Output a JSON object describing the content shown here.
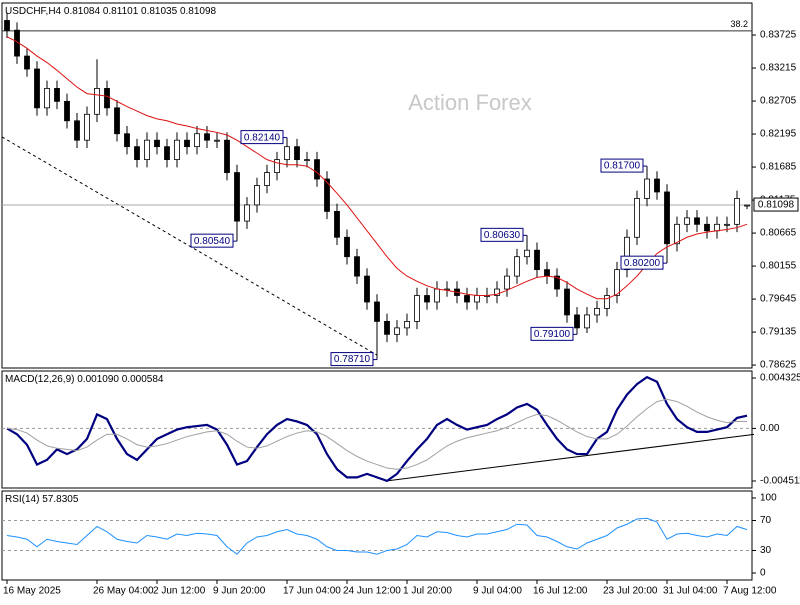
{
  "chart_data": [
    {
      "type": "candlestick",
      "title": "USDCHF,H4",
      "watermark": "Action Forex",
      "xlim": [
        -0.5,
        74.5
      ],
      "xticks": [
        {
          "value": 0,
          "label": "16 May 2025"
        },
        {
          "value": 9,
          "label": "26 May 04:00"
        },
        {
          "value": 15,
          "label": "2 Jun 12:00"
        },
        {
          "value": 21,
          "label": "9 Jun 20:00"
        },
        {
          "value": 28,
          "label": "17 Jun 04:00"
        },
        {
          "value": 34,
          "label": "24 Jun 12:00"
        },
        {
          "value": 40,
          "label": "1 Jul 20:00"
        },
        {
          "value": 47,
          "label": "9 Jul 04:00"
        },
        {
          "value": 53,
          "label": "16 Jul 12:00"
        },
        {
          "value": 60,
          "label": "23 Jul 20:00"
        },
        {
          "value": 66,
          "label": "31 Jul 04:00"
        },
        {
          "value": 72,
          "label": "7 Aug 12:00"
        }
      ],
      "ylim": [
        0.7858,
        0.8422
      ],
      "yticks": [
        0.83725,
        0.83215,
        0.82705,
        0.82195,
        0.81685,
        0.81175,
        0.80665,
        0.80155,
        0.79645,
        0.79135,
        0.78625
      ],
      "color": "#000000",
      "open": [
        0.8395,
        0.838,
        0.834,
        0.832,
        0.826,
        0.829,
        0.827,
        0.824,
        0.821,
        0.825,
        0.829,
        0.826,
        0.822,
        0.82,
        0.818,
        0.821,
        0.82,
        0.818,
        0.821,
        0.82,
        0.822,
        0.821,
        0.821,
        0.816,
        0.8085,
        0.811,
        0.814,
        0.816,
        0.818,
        0.82,
        0.818,
        0.818,
        0.815,
        0.81,
        0.806,
        0.803,
        0.8,
        0.796,
        0.793,
        0.791,
        0.792,
        0.793,
        0.797,
        0.796,
        0.798,
        0.798,
        0.797,
        0.796,
        0.797,
        0.797,
        0.798,
        0.8,
        0.803,
        0.804,
        0.801,
        0.8,
        0.798,
        0.794,
        0.792,
        0.794,
        0.795,
        0.797,
        0.801,
        0.806,
        0.812,
        0.815,
        0.813,
        0.805,
        0.808,
        0.809,
        0.808,
        0.807,
        0.808,
        0.808,
        0.81084
      ],
      "high": [
        0.8407,
        0.8392,
        0.8352,
        0.8332,
        0.8302,
        0.8302,
        0.8282,
        0.8252,
        0.8262,
        0.8335,
        0.8302,
        0.8272,
        0.8232,
        0.8212,
        0.8222,
        0.8222,
        0.8212,
        0.8222,
        0.8222,
        0.8232,
        0.8232,
        0.8222,
        0.8222,
        0.8172,
        0.8122,
        0.8152,
        0.8172,
        0.8192,
        0.8214,
        0.8212,
        0.8192,
        0.8192,
        0.8162,
        0.8112,
        0.8072,
        0.8042,
        0.8012,
        0.7972,
        0.7942,
        0.7932,
        0.7942,
        0.7982,
        0.7982,
        0.7992,
        0.7992,
        0.7992,
        0.7982,
        0.7982,
        0.7982,
        0.7992,
        0.8012,
        0.8042,
        0.8063,
        0.8052,
        0.8022,
        0.8012,
        0.7992,
        0.7952,
        0.7952,
        0.7962,
        0.7982,
        0.8022,
        0.8072,
        0.8132,
        0.817,
        0.8162,
        0.8142,
        0.8092,
        0.8102,
        0.8102,
        0.8092,
        0.8092,
        0.8092,
        0.8132,
        0.81101
      ],
      "low": [
        0.8368,
        0.8328,
        0.8308,
        0.8248,
        0.8248,
        0.8258,
        0.8228,
        0.8198,
        0.8198,
        0.8238,
        0.8248,
        0.8208,
        0.8188,
        0.8168,
        0.8168,
        0.8188,
        0.8168,
        0.8168,
        0.8188,
        0.8188,
        0.8198,
        0.8198,
        0.8148,
        0.8054,
        0.8073,
        0.8098,
        0.8128,
        0.8148,
        0.8168,
        0.8168,
        0.8168,
        0.8138,
        0.8088,
        0.8048,
        0.8018,
        0.7988,
        0.7948,
        0.7871,
        0.7898,
        0.7898,
        0.7908,
        0.7918,
        0.7948,
        0.7948,
        0.7968,
        0.7958,
        0.7948,
        0.7948,
        0.7958,
        0.7958,
        0.7968,
        0.7988,
        0.8018,
        0.7998,
        0.7988,
        0.7968,
        0.7928,
        0.791,
        0.7912,
        0.7928,
        0.7938,
        0.7958,
        0.7998,
        0.8048,
        0.8108,
        0.8118,
        0.802,
        0.8038,
        0.8068,
        0.8068,
        0.8058,
        0.8058,
        0.8068,
        0.8068,
        0.81035
      ],
      "close": [
        0.838,
        0.834,
        0.832,
        0.826,
        0.829,
        0.827,
        0.824,
        0.821,
        0.825,
        0.829,
        0.826,
        0.822,
        0.82,
        0.818,
        0.821,
        0.82,
        0.818,
        0.821,
        0.82,
        0.822,
        0.821,
        0.821,
        0.816,
        0.8085,
        0.811,
        0.814,
        0.816,
        0.818,
        0.82,
        0.818,
        0.818,
        0.815,
        0.81,
        0.806,
        0.803,
        0.8,
        0.796,
        0.793,
        0.791,
        0.792,
        0.793,
        0.797,
        0.796,
        0.798,
        0.798,
        0.797,
        0.796,
        0.797,
        0.797,
        0.798,
        0.8,
        0.803,
        0.804,
        0.801,
        0.8,
        0.798,
        0.794,
        0.792,
        0.794,
        0.795,
        0.797,
        0.801,
        0.806,
        0.812,
        0.815,
        0.813,
        0.805,
        0.808,
        0.809,
        0.808,
        0.807,
        0.808,
        0.808,
        0.812,
        0.81098
      ],
      "ma": {
        "color": "#dd1111",
        "values": [
          0.837,
          0.8362,
          0.8352,
          0.834,
          0.833,
          0.8318,
          0.8305,
          0.8292,
          0.8282,
          0.828,
          0.8278,
          0.827,
          0.8262,
          0.8255,
          0.8248,
          0.8243,
          0.824,
          0.8235,
          0.8232,
          0.8228,
          0.8225,
          0.8222,
          0.8218,
          0.821,
          0.82,
          0.819,
          0.818,
          0.8175,
          0.8172,
          0.8172,
          0.817,
          0.816,
          0.8145,
          0.8128,
          0.811,
          0.809,
          0.807,
          0.805,
          0.803,
          0.8012,
          0.8,
          0.7992,
          0.7985,
          0.798,
          0.7978,
          0.7975,
          0.7972,
          0.797,
          0.797,
          0.7972,
          0.7978,
          0.7985,
          0.7992,
          0.7998,
          0.8,
          0.7998,
          0.799,
          0.798,
          0.7972,
          0.7965,
          0.7965,
          0.7972,
          0.7985,
          0.8,
          0.8018,
          0.8035,
          0.8045,
          0.8052,
          0.806,
          0.8065,
          0.8068,
          0.807,
          0.8072,
          0.8075,
          0.808
        ]
      },
      "annotations": [
        {
          "x": 23,
          "value": 0.8054,
          "label": "0.80540"
        },
        {
          "x": 28,
          "value": 0.8214,
          "label": "0.82140"
        },
        {
          "x": 37,
          "value": 0.7871,
          "label": "0.78710"
        },
        {
          "x": 52,
          "value": 0.8063,
          "label": "0.80630"
        },
        {
          "x": 57,
          "value": 0.791,
          "label": "0.79100"
        },
        {
          "x": 64,
          "value": 0.817,
          "label": "0.81700"
        },
        {
          "x": 66,
          "value": 0.802,
          "label": "0.80200"
        }
      ],
      "fib_level": {
        "value": 0.8379,
        "label": "38.2"
      },
      "trendline": {
        "x": [
          -0.5,
          37
        ],
        "y": [
          0.8215,
          0.7878
        ],
        "dashed": true
      }
    },
    {
      "type": "line",
      "title": "MACD(12,26,9)",
      "legend_values": [
        "0.001090",
        "0.000584"
      ],
      "ylim": [
        -0.005112,
        0.004925
      ],
      "yticks": [
        0.004325,
        {
          "value": 0,
          "label": "0.00"
        },
        -0.004511
      ],
      "levels": [
        0
      ],
      "series": [
        {
          "color": "#000080",
          "width": 2.2,
          "values": [
            0,
            -0.0005,
            -0.0014,
            -0.0031,
            -0.0027,
            -0.0018,
            -0.0022,
            -0.0018,
            -0.0009,
            0.0012,
            0.0008,
            -0.0009,
            -0.0022,
            -0.0027,
            -0.0018,
            -0.0009,
            -0.0005,
            -0.0001,
            0.0001,
            0.0002,
            0.0003,
            -0.0001,
            -0.0014,
            -0.0031,
            -0.0028,
            -0.0016,
            -0.0005,
            0.0003,
            0.0008,
            0.0006,
            0.0003,
            -0.0005,
            -0.0022,
            -0.0035,
            -0.0042,
            -0.0042,
            -0.0039,
            -0.0042,
            -0.0045,
            -0.0039,
            -0.0028,
            -0.0018,
            -0.0009,
            0.0003,
            0.0008,
            0.0003,
            -0.0001,
            0.0001,
            0.0003,
            0.0008,
            0.0012,
            0.0018,
            0.0021,
            0.0016,
            0.0003,
            -0.0009,
            -0.0018,
            -0.0022,
            -0.0022,
            -0.0009,
            -0.0003,
            0.0016,
            0.0029,
            0.0038,
            0.0044,
            0.004,
            0.0021,
            0.0008,
            0.0001,
            -0.0003,
            -0.0003,
            -0.0001,
            0.0001,
            0.0009,
            0.00109
          ]
        },
        {
          "color": "#a0a0a0",
          "width": 1,
          "values": [
            0,
            -0.0001,
            -0.0004,
            -0.001,
            -0.0015,
            -0.0017,
            -0.0018,
            -0.0019,
            -0.0016,
            -0.001,
            -0.0005,
            -0.0005,
            -0.0009,
            -0.0014,
            -0.0016,
            -0.0015,
            -0.0013,
            -0.001,
            -0.0007,
            -0.0005,
            -0.0003,
            -0.0002,
            -0.0005,
            -0.0011,
            -0.0016,
            -0.0017,
            -0.0015,
            -0.0011,
            -0.0007,
            -0.0004,
            -0.0002,
            -0.0003,
            -0.0007,
            -0.0013,
            -0.0019,
            -0.0024,
            -0.0028,
            -0.0031,
            -0.0034,
            -0.0035,
            -0.0034,
            -0.0031,
            -0.0027,
            -0.0021,
            -0.0015,
            -0.0011,
            -0.0008,
            -0.0006,
            -0.0004,
            -0.0002,
            0.0001,
            0.0005,
            0.0009,
            0.0012,
            0.0011,
            0.0007,
            0.0002,
            -0.0003,
            -0.0007,
            -0.0009,
            -0.0009,
            -0.0005,
            0.0002,
            0.001,
            0.0017,
            0.0023,
            0.0025,
            0.0023,
            0.0019,
            0.0014,
            0.001,
            0.0007,
            0.0005,
            0.0006,
            0.000584
          ]
        }
      ],
      "trendline": {
        "x": [
          38,
          74.7
        ],
        "y": [
          -0.0045,
          -0.00051
        ],
        "dashed": false
      }
    },
    {
      "type": "line",
      "title": "RSI(14)",
      "ylim": [
        -9.3,
        109.3
      ],
      "yticks": [
        100,
        70,
        30,
        0
      ],
      "levels": [
        70,
        30
      ],
      "series": [
        {
          "color": "#1e90ff",
          "width": 1,
          "values": [
            50,
            48,
            45,
            35,
            45,
            42,
            40,
            38,
            50,
            62,
            55,
            45,
            42,
            40,
            50,
            48,
            45,
            52,
            50,
            53,
            52,
            50,
            35,
            25,
            40,
            48,
            50,
            55,
            58,
            52,
            50,
            45,
            35,
            30,
            30,
            28,
            28,
            25,
            30,
            32,
            38,
            50,
            48,
            55,
            54,
            50,
            48,
            52,
            52,
            55,
            58,
            65,
            64,
            50,
            48,
            42,
            35,
            32,
            40,
            45,
            50,
            60,
            65,
            72,
            73,
            68,
            45,
            52,
            53,
            50,
            48,
            52,
            50,
            62,
            57.8305
          ]
        }
      ]
    }
  ]
}
